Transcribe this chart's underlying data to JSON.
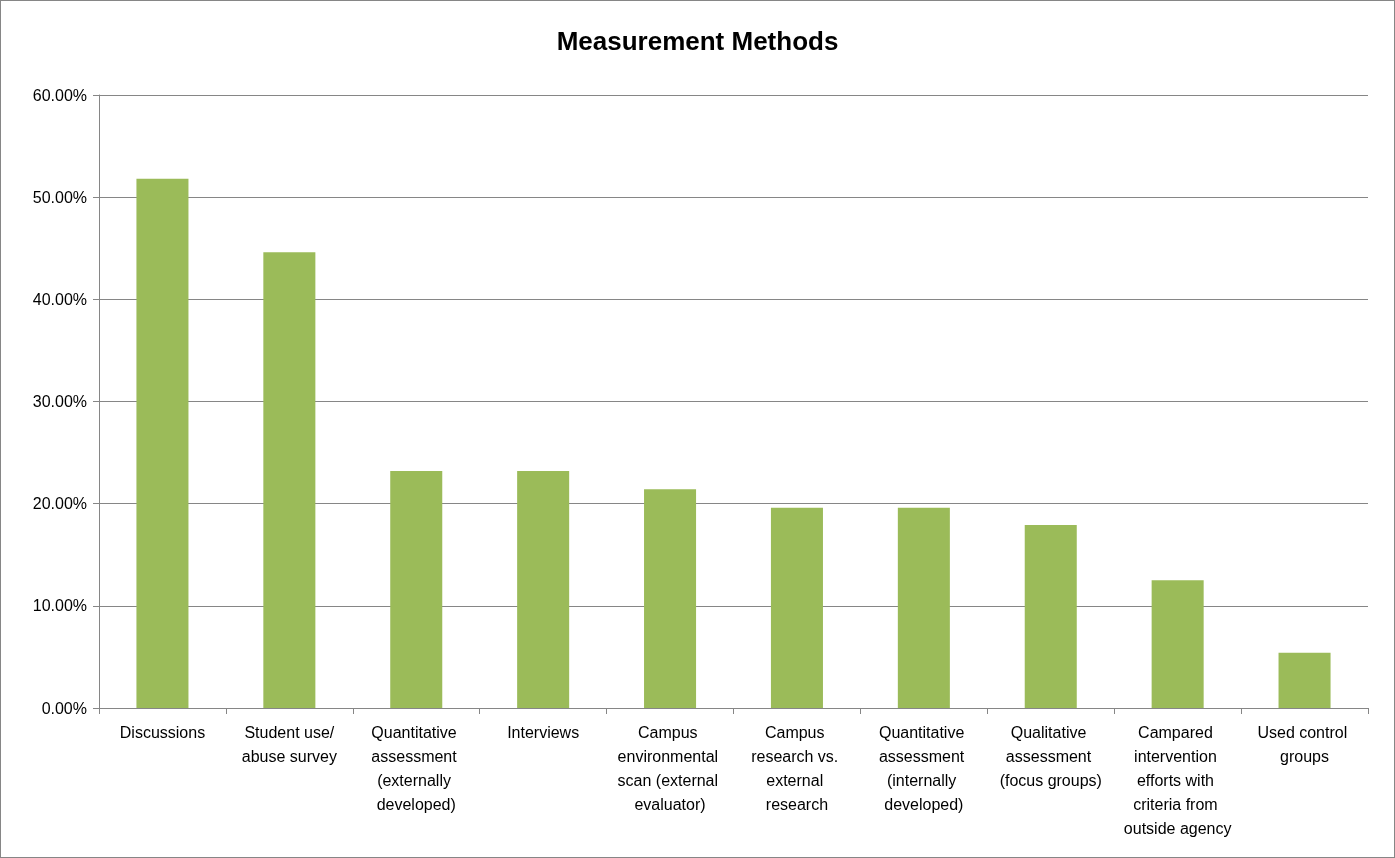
{
  "chart_data": {
    "type": "bar",
    "title": "Measurement Methods",
    "categories": [
      "Discussions",
      "Student use/abuse survey",
      "Quantitative assessment (externally developed)",
      "Interviews",
      "Campus environmental scan (external evaluator)",
      "Campus research vs. external research",
      "Quantitative assessment (internally developed)",
      "Qualitative assessment (focus groups)",
      "Campared intervention efforts with criteria from outside agency",
      "Used control groups"
    ],
    "values": [
      51.8,
      44.6,
      23.2,
      23.2,
      21.4,
      19.6,
      19.6,
      17.9,
      12.5,
      5.4
    ],
    "color": "#9bbb59",
    "ylim": [
      0,
      60
    ],
    "yticks": [
      {
        "value": 0,
        "label": "0.00%"
      },
      {
        "value": 10,
        "label": "10.00%"
      },
      {
        "value": 20,
        "label": "20.00%"
      },
      {
        "value": 30,
        "label": "30.00%"
      },
      {
        "value": 40,
        "label": "40.00%"
      },
      {
        "value": 50,
        "label": "50.00%"
      },
      {
        "value": 60,
        "label": "60.00%"
      }
    ],
    "grid": "y"
  }
}
